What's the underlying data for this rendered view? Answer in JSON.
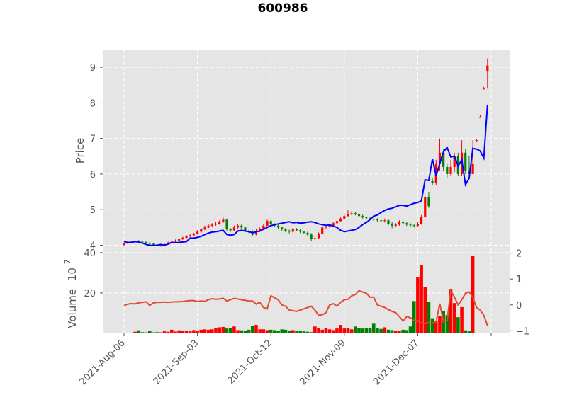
{
  "chart_data": {
    "type": "candlestick",
    "title": "600986",
    "ylabel_price": "Price",
    "ylabel_volume": "Volume",
    "volume_multiplier_label": "10",
    "volume_multiplier_exp": "7",
    "price_ylim": [
      3.85,
      9.5
    ],
    "price_yticks": [
      "4",
      "5",
      "6",
      "7",
      "8",
      "9"
    ],
    "volume_ylim": [
      0,
      41
    ],
    "volume_yticks": [
      "20",
      "40"
    ],
    "right_ylim": [
      -1.1,
      2.1
    ],
    "right_yticks": [
      "2",
      "1",
      "0",
      "−1"
    ],
    "x_tick_labels": [
      "2021-Aug-06",
      "2021-Sep-03",
      "2021-Oct-12",
      "2021-Nov-09",
      "2021-Dec-07"
    ],
    "x_tick_index": [
      0,
      20,
      40,
      60,
      80
    ],
    "n_bars": 100,
    "colors": {
      "up": "#ff0000",
      "down": "#008000",
      "ma_line": "#0000ff",
      "volume_ma": "#e24a33",
      "panel_bg": "#e5e5e5",
      "grid": "#ffffff"
    },
    "series": [
      {
        "name": "open",
        "values": [
          4.01,
          4.05,
          4.08,
          4.1,
          4.12,
          4.1,
          4.09,
          4.07,
          4.04,
          4.0,
          3.98,
          4.0,
          4.03,
          4.07,
          4.1,
          4.13,
          4.17,
          4.21,
          4.25,
          4.28,
          4.32,
          4.38,
          4.45,
          4.5,
          4.55,
          4.58,
          4.6,
          4.66,
          4.72,
          4.45,
          4.42,
          4.5,
          4.55,
          4.5,
          4.4,
          4.38,
          4.3,
          4.4,
          4.45,
          4.55,
          4.68,
          4.6,
          4.55,
          4.5,
          4.45,
          4.4,
          4.38,
          4.45,
          4.42,
          4.38,
          4.35,
          4.3,
          4.18,
          4.2,
          4.32,
          4.5,
          4.52,
          4.56,
          4.62,
          4.68,
          4.75,
          4.82,
          4.88,
          4.9,
          4.88,
          4.82,
          4.78,
          4.76,
          4.74,
          4.72,
          4.7,
          4.68,
          4.7,
          4.6,
          4.55,
          4.58,
          4.65,
          4.62,
          4.58,
          4.56,
          4.55,
          4.6,
          4.8,
          5.35,
          5.8,
          5.75,
          6.3,
          6.6,
          6.2,
          6.0,
          6.2,
          6.5,
          6.0,
          6.6,
          6.1,
          6.0,
          6.95,
          7.6,
          8.4,
          8.88
        ]
      },
      {
        "name": "close",
        "values": [
          4.05,
          4.08,
          4.1,
          4.12,
          4.1,
          4.09,
          4.07,
          4.04,
          4.0,
          3.98,
          4.0,
          4.03,
          4.07,
          4.1,
          4.13,
          4.17,
          4.21,
          4.25,
          4.28,
          4.32,
          4.38,
          4.45,
          4.5,
          4.55,
          4.58,
          4.6,
          4.66,
          4.72,
          4.45,
          4.42,
          4.5,
          4.55,
          4.5,
          4.4,
          4.38,
          4.3,
          4.4,
          4.45,
          4.55,
          4.68,
          4.6,
          4.55,
          4.5,
          4.45,
          4.4,
          4.38,
          4.45,
          4.42,
          4.38,
          4.35,
          4.3,
          4.18,
          4.2,
          4.32,
          4.5,
          4.52,
          4.56,
          4.62,
          4.68,
          4.75,
          4.82,
          4.88,
          4.9,
          4.88,
          4.82,
          4.78,
          4.76,
          4.74,
          4.72,
          4.7,
          4.68,
          4.7,
          4.6,
          4.55,
          4.58,
          4.65,
          4.62,
          4.58,
          4.56,
          4.55,
          4.6,
          4.8,
          5.35,
          5.1,
          5.75,
          6.3,
          6.6,
          6.2,
          6.0,
          6.2,
          6.5,
          6.0,
          6.6,
          6.1,
          6.0,
          6.3,
          6.95,
          7.6,
          8.4,
          9.05
        ]
      },
      {
        "name": "high",
        "values": [
          4.07,
          4.1,
          4.12,
          4.14,
          4.14,
          4.12,
          4.11,
          4.09,
          4.06,
          4.02,
          4.03,
          4.06,
          4.1,
          4.13,
          4.16,
          4.2,
          4.24,
          4.28,
          4.31,
          4.35,
          4.42,
          4.48,
          4.55,
          4.6,
          4.62,
          4.66,
          4.7,
          4.8,
          4.75,
          4.48,
          4.55,
          4.6,
          4.58,
          4.52,
          4.44,
          4.42,
          4.45,
          4.5,
          4.6,
          4.72,
          4.72,
          4.62,
          4.58,
          4.52,
          4.48,
          4.44,
          4.49,
          4.48,
          4.45,
          4.4,
          4.38,
          4.34,
          4.24,
          4.36,
          4.54,
          4.56,
          4.6,
          4.66,
          4.72,
          4.8,
          4.86,
          5.0,
          4.96,
          4.93,
          4.92,
          4.86,
          4.81,
          4.8,
          4.78,
          4.76,
          4.74,
          4.75,
          4.74,
          4.65,
          4.62,
          4.7,
          4.7,
          4.66,
          4.62,
          4.6,
          4.65,
          4.85,
          5.4,
          5.5,
          5.9,
          6.4,
          7.0,
          6.7,
          6.3,
          6.4,
          6.6,
          6.6,
          6.95,
          6.7,
          6.5,
          6.95,
          6.98,
          7.66,
          8.45,
          9.25
        ]
      },
      {
        "name": "low",
        "values": [
          3.99,
          4.02,
          4.06,
          4.08,
          4.08,
          4.07,
          4.05,
          4.02,
          3.98,
          3.96,
          3.96,
          3.99,
          4.02,
          4.05,
          4.08,
          4.11,
          4.15,
          4.19,
          4.23,
          4.26,
          4.3,
          4.35,
          4.42,
          4.48,
          4.52,
          4.55,
          4.58,
          4.62,
          4.4,
          4.38,
          4.4,
          4.47,
          4.46,
          4.37,
          4.34,
          4.27,
          4.28,
          4.37,
          4.43,
          4.52,
          4.55,
          4.52,
          4.46,
          4.41,
          4.36,
          4.33,
          4.35,
          4.39,
          4.34,
          4.31,
          4.26,
          4.12,
          4.13,
          4.18,
          4.3,
          4.47,
          4.5,
          4.54,
          4.6,
          4.65,
          4.72,
          4.8,
          4.84,
          4.84,
          4.78,
          4.75,
          4.72,
          4.7,
          4.68,
          4.66,
          4.64,
          4.64,
          4.56,
          4.48,
          4.52,
          4.55,
          4.58,
          4.54,
          4.52,
          4.5,
          4.52,
          4.58,
          4.78,
          5.05,
          5.7,
          5.7,
          6.1,
          6.1,
          5.9,
          5.95,
          6.05,
          5.95,
          5.95,
          6.0,
          5.95,
          6.0,
          6.9,
          7.58,
          8.38,
          8.4
        ]
      },
      {
        "name": "ma",
        "values": [
          4.1,
          4.08,
          4.08,
          4.1,
          4.09,
          4.06,
          4.02,
          4.0,
          3.99,
          4.0,
          4.02,
          4.0,
          4.03,
          4.08,
          4.07,
          4.08,
          4.09,
          4.1,
          4.2,
          4.2,
          4.22,
          4.25,
          4.3,
          4.34,
          4.37,
          4.38,
          4.4,
          4.42,
          4.3,
          4.28,
          4.3,
          4.4,
          4.42,
          4.4,
          4.38,
          4.35,
          4.38,
          4.4,
          4.45,
          4.5,
          4.55,
          4.58,
          4.6,
          4.62,
          4.64,
          4.66,
          4.63,
          4.64,
          4.62,
          4.63,
          4.65,
          4.66,
          4.64,
          4.6,
          4.58,
          4.56,
          4.57,
          4.54,
          4.5,
          4.42,
          4.38,
          4.4,
          4.42,
          4.44,
          4.5,
          4.58,
          4.64,
          4.72,
          4.82,
          4.85,
          4.92,
          4.98,
          5.02,
          5.04,
          5.08,
          5.12,
          5.12,
          5.1,
          5.14,
          5.18,
          5.2,
          5.25,
          5.84,
          5.82,
          6.43,
          5.95,
          6.3,
          6.62,
          6.75,
          6.48,
          6.5,
          6.22,
          6.41,
          5.7,
          5.88,
          6.72,
          6.7,
          6.65,
          6.45,
          7.95
        ]
      },
      {
        "name": "volume",
        "values": [
          0.3,
          0.3,
          0.3,
          0.8,
          1.5,
          0.6,
          0.5,
          1.2,
          0.5,
          0.6,
          0.5,
          1.0,
          0.8,
          1.8,
          0.9,
          1.5,
          1.4,
          1.4,
          1.0,
          1.6,
          1.4,
          1.8,
          2.0,
          1.8,
          2.0,
          2.6,
          3.0,
          3.2,
          2.4,
          2.8,
          3.4,
          1.6,
          1.5,
          1.2,
          1.8,
          3.6,
          4.2,
          2.0,
          2.0,
          1.6,
          1.8,
          1.6,
          1.2,
          2.0,
          1.8,
          1.4,
          1.6,
          1.4,
          1.4,
          1.0,
          0.8,
          0.6,
          3.4,
          2.6,
          1.8,
          2.6,
          2.0,
          1.6,
          2.4,
          4.2,
          2.4,
          2.6,
          2.0,
          3.4,
          2.6,
          2.4,
          2.8,
          2.6,
          4.8,
          2.6,
          2.2,
          3.0,
          1.8,
          1.6,
          1.4,
          1.2,
          1.8,
          1.6,
          3.4,
          16.0,
          28.0,
          34.0,
          23.0,
          15.5,
          7.5,
          6.0,
          8.5,
          11.0,
          9.0,
          22.0,
          15.0,
          8.0,
          13.0,
          1.5,
          1.0,
          38.5,
          0,
          0,
          0,
          0
        ]
      },
      {
        "name": "volume_ma",
        "values": [
          -0.02,
          0.03,
          0.05,
          0.04,
          0.08,
          0.1,
          0.12,
          -0.02,
          0.08,
          0.1,
          0.1,
          0.11,
          0.1,
          0.11,
          0.12,
          0.12,
          0.13,
          0.15,
          0.17,
          0.17,
          0.13,
          0.15,
          0.14,
          0.2,
          0.24,
          0.22,
          0.23,
          0.26,
          0.15,
          0.2,
          0.25,
          0.23,
          0.2,
          0.18,
          0.15,
          0.15,
          0.03,
          0.1,
          -0.1,
          -0.15,
          0.35,
          0.28,
          0.2,
          0.0,
          -0.05,
          -0.2,
          -0.22,
          -0.25,
          -0.2,
          -0.15,
          -0.1,
          -0.05,
          -0.2,
          -0.4,
          -0.38,
          -0.3,
          0.0,
          0.05,
          -0.05,
          0.1,
          0.2,
          0.22,
          0.35,
          0.4,
          0.55,
          0.5,
          0.45,
          0.3,
          0.3,
          0.0,
          -0.05,
          -0.1,
          -0.18,
          -0.25,
          -0.3,
          -0.45,
          -0.62,
          -0.45,
          -0.5,
          -0.6,
          -0.62,
          -0.7,
          -0.72,
          -0.68,
          -0.7,
          -0.66,
          0.05,
          -0.65,
          -0.6,
          0.55,
          0.3,
          0.0,
          0.2,
          0.45,
          0.5,
          0.3,
          -0.1,
          -0.2,
          -0.4,
          -0.8
        ]
      }
    ]
  }
}
